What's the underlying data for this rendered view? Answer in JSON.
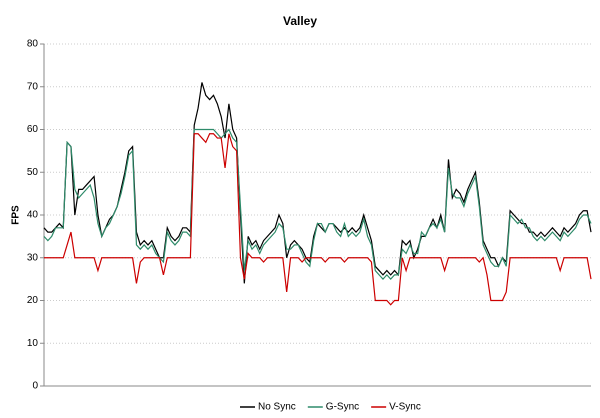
{
  "chart_data": {
    "type": "line",
    "title": "Valley",
    "y_label": "FPS",
    "ylim": [
      0,
      80
    ],
    "yticks": [
      0,
      10,
      20,
      30,
      40,
      50,
      60,
      70,
      80
    ],
    "grid": true,
    "legend": "bottom",
    "series": [
      {
        "name": "No Sync",
        "color": "#000000",
        "values": [
          37,
          36,
          36,
          37,
          38,
          37,
          57,
          56,
          40,
          46,
          46,
          47,
          48,
          49,
          40,
          35,
          37,
          39,
          40,
          42,
          46,
          50,
          55,
          56,
          36,
          33,
          34,
          33,
          34,
          32,
          30,
          30,
          37,
          35,
          34,
          35,
          37,
          37,
          36,
          61,
          65,
          71,
          68,
          67,
          68,
          66,
          63,
          58,
          66,
          60,
          58,
          40,
          24,
          35,
          33,
          34,
          32,
          34,
          35,
          36,
          37,
          40,
          38,
          30,
          33,
          34,
          33,
          32,
          30,
          29,
          35,
          38,
          37,
          36,
          38,
          38,
          37,
          36,
          37,
          36,
          37,
          36,
          37,
          40,
          37,
          34,
          28,
          27,
          26,
          27,
          26,
          27,
          26,
          34,
          33,
          34,
          30,
          32,
          35,
          35,
          37,
          39,
          37,
          40,
          36,
          53,
          44,
          46,
          45,
          43,
          46,
          48,
          50,
          43,
          34,
          32,
          30,
          30,
          28,
          30,
          29,
          41,
          40,
          39,
          38,
          38,
          36,
          36,
          35,
          36,
          35,
          36,
          37,
          36,
          35,
          37,
          36,
          37,
          38,
          40,
          41,
          41,
          36
        ]
      },
      {
        "name": "G-Sync",
        "color": "#2e8b6a",
        "values": [
          35,
          34,
          35,
          37,
          37,
          37,
          57,
          56,
          46,
          44,
          45,
          46,
          47,
          44,
          38,
          35,
          37,
          38,
          40,
          42,
          45,
          49,
          54,
          55,
          33,
          32,
          33,
          32,
          33,
          31,
          30,
          29,
          36,
          34,
          33,
          34,
          36,
          36,
          35,
          60,
          60,
          60,
          60,
          60,
          60,
          59,
          58,
          59,
          60,
          58,
          57,
          42,
          27,
          34,
          32,
          33,
          31,
          33,
          34,
          35,
          36,
          38,
          37,
          32,
          32,
          33,
          33,
          31,
          29,
          28,
          34,
          38,
          38,
          36,
          38,
          38,
          36,
          35,
          38,
          35,
          36,
          35,
          36,
          39,
          35,
          33,
          27,
          26,
          25,
          26,
          25,
          26,
          26,
          32,
          31,
          33,
          31,
          31,
          36,
          35,
          37,
          38,
          37,
          39,
          36,
          51,
          45,
          44,
          44,
          42,
          45,
          47,
          49,
          42,
          33,
          31,
          29,
          28,
          28,
          30,
          28,
          40,
          39,
          38,
          39,
          37,
          37,
          35,
          34,
          35,
          34,
          35,
          36,
          35,
          34,
          36,
          35,
          36,
          37,
          39,
          40,
          40,
          38
        ]
      },
      {
        "name": "V-Sync",
        "color": "#cc0000",
        "values": [
          30,
          30,
          30,
          30,
          30,
          30,
          33,
          36,
          30,
          30,
          30,
          30,
          30,
          30,
          27,
          30,
          30,
          30,
          30,
          30,
          30,
          30,
          30,
          30,
          24,
          29,
          30,
          30,
          30,
          30,
          30,
          26,
          30,
          30,
          30,
          30,
          30,
          30,
          30,
          59,
          59,
          58,
          57,
          59,
          59,
          58,
          58,
          51,
          59,
          56,
          55,
          30,
          25,
          31,
          30,
          30,
          30,
          29,
          30,
          30,
          30,
          30,
          30,
          22,
          30,
          30,
          30,
          29,
          30,
          30,
          30,
          30,
          30,
          29,
          30,
          30,
          30,
          30,
          29,
          30,
          30,
          30,
          30,
          30,
          30,
          29,
          20,
          20,
          20,
          20,
          19,
          20,
          20,
          30,
          27,
          30,
          30,
          30,
          30,
          30,
          30,
          30,
          30,
          30,
          27,
          30,
          30,
          30,
          30,
          30,
          30,
          30,
          30,
          29,
          30,
          26,
          20,
          20,
          20,
          20,
          22,
          30,
          30,
          30,
          30,
          30,
          30,
          30,
          30,
          30,
          30,
          30,
          30,
          30,
          27,
          30,
          30,
          30,
          30,
          30,
          30,
          30,
          25
        ]
      }
    ]
  }
}
